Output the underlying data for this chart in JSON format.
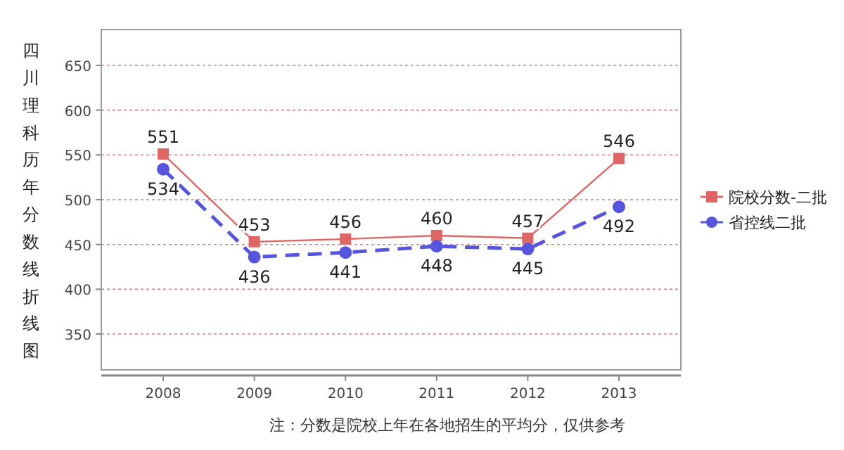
{
  "chart_data": {
    "type": "line",
    "ylabel": "四川理科历年分数线折线图",
    "categories": [
      "2008",
      "2009",
      "2010",
      "2011",
      "2012",
      "2013"
    ],
    "series": [
      {
        "name": "院校分数-二批",
        "color": "#e06666",
        "values": [
          551,
          453,
          456,
          460,
          457,
          546
        ],
        "marker": "square",
        "line_style": "solid"
      },
      {
        "name": "省控线二批",
        "color": "#5555e0",
        "values": [
          534,
          436,
          441,
          448,
          445,
          492
        ],
        "marker": "circle",
        "line_style": "dashed"
      }
    ],
    "ylim": [
      310,
      690
    ],
    "yticks": [
      350,
      400,
      450,
      500,
      550,
      600,
      650
    ],
    "grid": "y",
    "legend": "right",
    "data_labels": true,
    "annotations": [
      "注：分数是院校上年在各地招生的平均分，仅供参考"
    ]
  }
}
